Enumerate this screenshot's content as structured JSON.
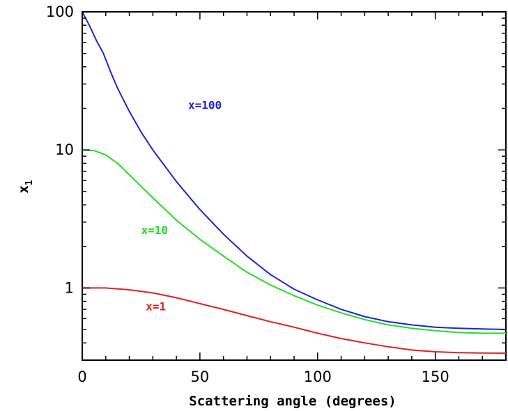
{
  "chart_data": {
    "type": "line",
    "title": "",
    "xlabel": "Scattering angle (degrees)",
    "ylabel": "x",
    "ylabel_subscript": "1",
    "xlim": [
      0,
      180
    ],
    "ylim": [
      0.3,
      100
    ],
    "y_scale": "log",
    "grid": false,
    "x_ticks": [
      {
        "value": 0,
        "label": "0"
      },
      {
        "value": 50,
        "label": "50"
      },
      {
        "value": 100,
        "label": "100"
      },
      {
        "value": 150,
        "label": "150"
      }
    ],
    "y_ticks": [
      {
        "value": 1,
        "label": "1"
      },
      {
        "value": 10,
        "label": "10"
      },
      {
        "value": 100,
        "label": "100"
      }
    ],
    "series": [
      {
        "name": "x=100",
        "color": "#2020e0",
        "label_at": [
          45,
          21
        ],
        "points": [
          [
            0,
            100
          ],
          [
            3,
            80
          ],
          [
            6,
            62
          ],
          [
            9,
            50
          ],
          [
            12,
            37
          ],
          [
            15,
            28
          ],
          [
            20,
            19
          ],
          [
            25,
            13.5
          ],
          [
            30,
            10
          ],
          [
            40,
            5.9
          ],
          [
            50,
            3.7
          ],
          [
            60,
            2.45
          ],
          [
            70,
            1.7
          ],
          [
            80,
            1.25
          ],
          [
            90,
            0.98
          ],
          [
            100,
            0.82
          ],
          [
            110,
            0.7
          ],
          [
            120,
            0.62
          ],
          [
            130,
            0.57
          ],
          [
            140,
            0.54
          ],
          [
            150,
            0.52
          ],
          [
            160,
            0.51
          ],
          [
            170,
            0.505
          ],
          [
            180,
            0.5
          ]
        ]
      },
      {
        "name": "x=10",
        "color": "#20e020",
        "label_at": [
          25,
          2.6
        ],
        "points": [
          [
            0,
            10
          ],
          [
            5,
            9.9
          ],
          [
            10,
            9.2
          ],
          [
            15,
            8.0
          ],
          [
            20,
            6.6
          ],
          [
            30,
            4.5
          ],
          [
            40,
            3.1
          ],
          [
            50,
            2.25
          ],
          [
            60,
            1.7
          ],
          [
            70,
            1.3
          ],
          [
            80,
            1.05
          ],
          [
            90,
            0.88
          ],
          [
            100,
            0.75
          ],
          [
            110,
            0.66
          ],
          [
            120,
            0.59
          ],
          [
            130,
            0.54
          ],
          [
            140,
            0.51
          ],
          [
            150,
            0.49
          ],
          [
            160,
            0.475
          ],
          [
            170,
            0.47
          ],
          [
            180,
            0.47
          ]
        ]
      },
      {
        "name": "x=1",
        "color": "#e02020",
        "label_at": [
          27,
          0.73
        ],
        "points": [
          [
            0,
            1.0
          ],
          [
            10,
            1.0
          ],
          [
            20,
            0.97
          ],
          [
            30,
            0.92
          ],
          [
            40,
            0.85
          ],
          [
            50,
            0.77
          ],
          [
            60,
            0.7
          ],
          [
            70,
            0.63
          ],
          [
            80,
            0.57
          ],
          [
            90,
            0.52
          ],
          [
            100,
            0.47
          ],
          [
            110,
            0.43
          ],
          [
            120,
            0.4
          ],
          [
            130,
            0.375
          ],
          [
            140,
            0.355
          ],
          [
            150,
            0.345
          ],
          [
            160,
            0.34
          ],
          [
            170,
            0.338
          ],
          [
            180,
            0.337
          ]
        ]
      }
    ]
  }
}
